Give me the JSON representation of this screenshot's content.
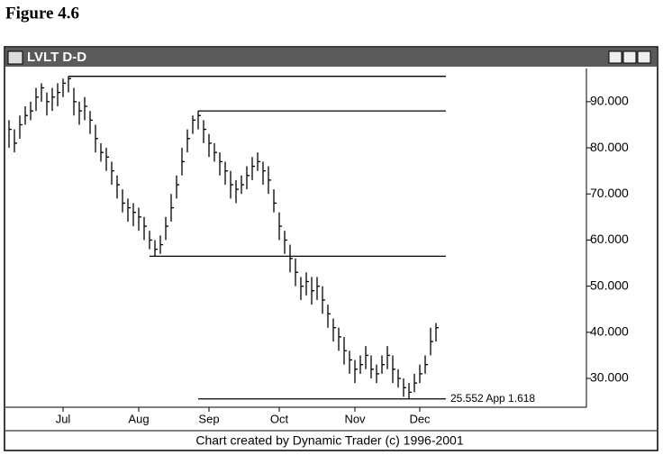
{
  "figure_title": "Figure 4.6",
  "window_title": "LVLT D-D",
  "footer": "Chart created by Dynamic Trader (c) 1996-2001",
  "chart_data": {
    "type": "hlc",
    "categories": [
      null,
      null,
      null,
      null,
      null,
      null,
      null,
      null,
      null,
      null,
      "Jul",
      null,
      null,
      null,
      null,
      null,
      null,
      null,
      null,
      null,
      null,
      null,
      null,
      null,
      "Aug",
      null,
      null,
      null,
      null,
      null,
      null,
      null,
      null,
      null,
      null,
      null,
      null,
      "Sep",
      null,
      null,
      null,
      null,
      null,
      null,
      null,
      null,
      null,
      null,
      null,
      null,
      "Oct",
      null,
      null,
      null,
      null,
      null,
      null,
      null,
      null,
      null,
      null,
      null,
      null,
      null,
      "Nov",
      null,
      null,
      null,
      null,
      null,
      null,
      null,
      null,
      null,
      null,
      null,
      "Dec",
      null,
      null,
      null
    ],
    "high": [
      86,
      84,
      87,
      89,
      90,
      93,
      94,
      92,
      93,
      94,
      95,
      95.5,
      93,
      90,
      91,
      88,
      85,
      81,
      80,
      77,
      74,
      71,
      69,
      68,
      67,
      65,
      62,
      60,
      61,
      65,
      70,
      74,
      80,
      84,
      87,
      88,
      86,
      83,
      81,
      79,
      77,
      75,
      73,
      74,
      76,
      78,
      79,
      77,
      76,
      71,
      66,
      62,
      59,
      56,
      52,
      53,
      52,
      52,
      50,
      46,
      43,
      41,
      39,
      36,
      34,
      35,
      37,
      35,
      33,
      35,
      37,
      35,
      32,
      30,
      29,
      31,
      33,
      35,
      41,
      42
    ],
    "low": [
      80,
      79,
      82,
      85,
      86,
      88,
      90,
      87,
      88,
      89,
      91,
      92,
      87,
      85,
      86,
      83,
      79,
      77,
      75,
      72,
      69,
      66,
      64,
      63,
      62,
      60,
      58,
      56.5,
      57,
      60,
      64,
      69,
      74,
      79,
      83,
      84,
      81,
      78,
      77,
      74,
      72,
      69,
      68,
      70,
      71,
      73,
      75,
      72,
      70,
      66,
      60,
      57,
      53,
      50,
      47,
      48,
      46,
      47,
      44,
      41,
      38,
      36,
      33,
      31,
      29,
      31,
      32,
      30,
      29,
      31,
      32,
      29,
      28,
      26,
      25.6,
      27,
      29,
      31,
      35,
      38
    ],
    "close": [
      84,
      81,
      85,
      87,
      88,
      91,
      93,
      90,
      91,
      92,
      94,
      95,
      90,
      88,
      89,
      86,
      82,
      79,
      78,
      75,
      72,
      68,
      67,
      66,
      65,
      63,
      60,
      58,
      59,
      63,
      67,
      72,
      77,
      82,
      86,
      87,
      84,
      81,
      79,
      77,
      75,
      72,
      71,
      72,
      74,
      76,
      77,
      75,
      73,
      68,
      63,
      60,
      56,
      53,
      50,
      51,
      49,
      50,
      47,
      44,
      41,
      39,
      36,
      34,
      32,
      33,
      35,
      32,
      31,
      33,
      35,
      32,
      30,
      28,
      27,
      29,
      31,
      33,
      38,
      41
    ],
    "color": "#000000",
    "ylim": [
      23.75,
      97.2
    ],
    "yticks": [
      {
        "value": 30,
        "label": "30.000"
      },
      {
        "value": 40,
        "label": "40.000"
      },
      {
        "value": 50,
        "label": "50.000"
      },
      {
        "value": 60,
        "label": "60.000"
      },
      {
        "value": 70,
        "label": "70.000"
      },
      {
        "value": 80,
        "label": "80.000"
      },
      {
        "value": 90,
        "label": "90.000"
      }
    ],
    "levels": [
      {
        "value": 95.5,
        "start": 11
      },
      {
        "value": 88,
        "start": 35
      },
      {
        "value": 56.5,
        "start": 26
      },
      {
        "value": 25.552,
        "start": 35,
        "label": "25.552 App 1.618"
      }
    ]
  }
}
